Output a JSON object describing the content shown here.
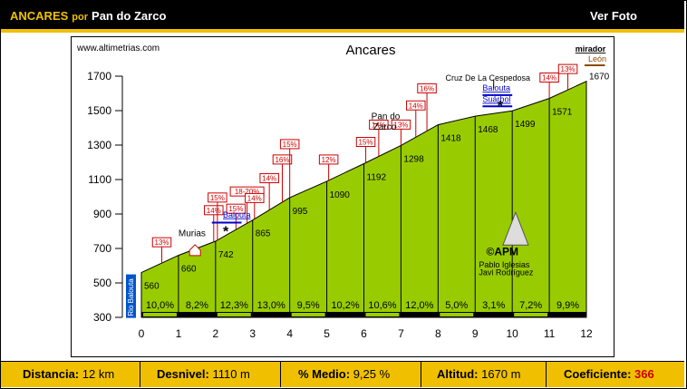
{
  "header": {
    "climb": "ANCARES",
    "por": "por",
    "route": "Pan do Zarco",
    "ver_foto": "Ver Foto"
  },
  "chart_data": {
    "type": "area",
    "title": "Ancares",
    "source": "www.altimetrias.com",
    "xlim": [
      0,
      12
    ],
    "ylim": [
      300,
      1700
    ],
    "x_ticks": [
      "0",
      "1",
      "2",
      "3",
      "4",
      "5",
      "6",
      "7",
      "8",
      "9",
      "10",
      "11",
      "12"
    ],
    "y_ticks": [
      "300",
      "500",
      "700",
      "900",
      "1100",
      "1300",
      "1500",
      "1700"
    ],
    "profile": [
      {
        "km": 0.0,
        "alt": 560
      },
      {
        "km": 1.0,
        "alt": 660
      },
      {
        "km": 2.0,
        "alt": 742
      },
      {
        "km": 3.0,
        "alt": 865
      },
      {
        "km": 4.0,
        "alt": 995
      },
      {
        "km": 5.0,
        "alt": 1090
      },
      {
        "km": 6.0,
        "alt": 1192
      },
      {
        "km": 7.0,
        "alt": 1298
      },
      {
        "km": 8.0,
        "alt": 1418
      },
      {
        "km": 9.0,
        "alt": 1468
      },
      {
        "km": 10.0,
        "alt": 1499
      },
      {
        "km": 11.0,
        "alt": 1571
      },
      {
        "km": 12.0,
        "alt": 1670
      }
    ],
    "altitude_labels": [
      {
        "km": 0.0,
        "text": "560"
      },
      {
        "km": 1.0,
        "text": "660"
      },
      {
        "km": 2.0,
        "text": "742"
      },
      {
        "km": 3.0,
        "text": "865"
      },
      {
        "km": 4.0,
        "text": "995"
      },
      {
        "km": 5.0,
        "text": "1090"
      },
      {
        "km": 6.0,
        "text": "1192"
      },
      {
        "km": 7.0,
        "text": "1298"
      },
      {
        "km": 8.0,
        "text": "1418"
      },
      {
        "km": 9.0,
        "text": "1468"
      },
      {
        "km": 10.0,
        "text": "1499"
      },
      {
        "km": 11.0,
        "text": "1571"
      },
      {
        "km": 12.0,
        "text": "1670"
      }
    ],
    "segment_gradients": [
      "10,0%",
      "8,2%",
      "12,3%",
      "13,0%",
      "9,5%",
      "10,2%",
      "10,6%",
      "12,0%",
      "5,0%",
      "3,1%",
      "7,2%",
      "9,9%"
    ],
    "max_gradient_flags": [
      {
        "km": 0.55,
        "text": "13%"
      },
      {
        "km": 1.95,
        "text": "14%"
      },
      {
        "km": 2.55,
        "text": "15%"
      },
      {
        "km": 2.85,
        "text": "18-20%"
      },
      {
        "km": 2.05,
        "text": "15%"
      },
      {
        "km": 3.05,
        "text": "14%"
      },
      {
        "km": 3.45,
        "text": "14%"
      },
      {
        "km": 3.8,
        "text": "16%"
      },
      {
        "km": 4.0,
        "text": "15%"
      },
      {
        "km": 5.05,
        "text": "12%"
      },
      {
        "km": 6.05,
        "text": "15%"
      },
      {
        "km": 6.4,
        "text": "14%"
      },
      {
        "km": 7.0,
        "text": "13%"
      },
      {
        "km": 7.4,
        "text": "14%"
      },
      {
        "km": 7.7,
        "text": "16%"
      },
      {
        "km": 11.0,
        "text": "14%"
      },
      {
        "km": 11.5,
        "text": "13%"
      }
    ],
    "annotations": {
      "rio": "Rio Balouta",
      "murias": "Murias",
      "balouta1": "Balouta",
      "pan_do": "Pan do",
      "zarco": "Zarco",
      "cruz": "Cruz De La Cespedosa",
      "balouta2": "Balouta",
      "suarbol": "Suárbol",
      "mirador": "mirador",
      "leon": "León",
      "apm": "©APM",
      "author1": "Pablo Iglesias",
      "author2": "Javi Rodríguez"
    }
  },
  "stats": {
    "distancia_label": "Distancia:",
    "distancia_value": "12 km",
    "desnivel_label": "Desnivel:",
    "desnivel_value": "1110 m",
    "medio_label": "% Medio:",
    "medio_value": "9,25 %",
    "altitud_label": "Altitud:",
    "altitud_value": "1670 m",
    "coef_label": "Coeficiente:",
    "coef_value": "366"
  },
  "colors": {
    "fill": "#99cc00",
    "accent": "#f0c000",
    "flag": "#cc0000",
    "sign": "#0000cc"
  }
}
